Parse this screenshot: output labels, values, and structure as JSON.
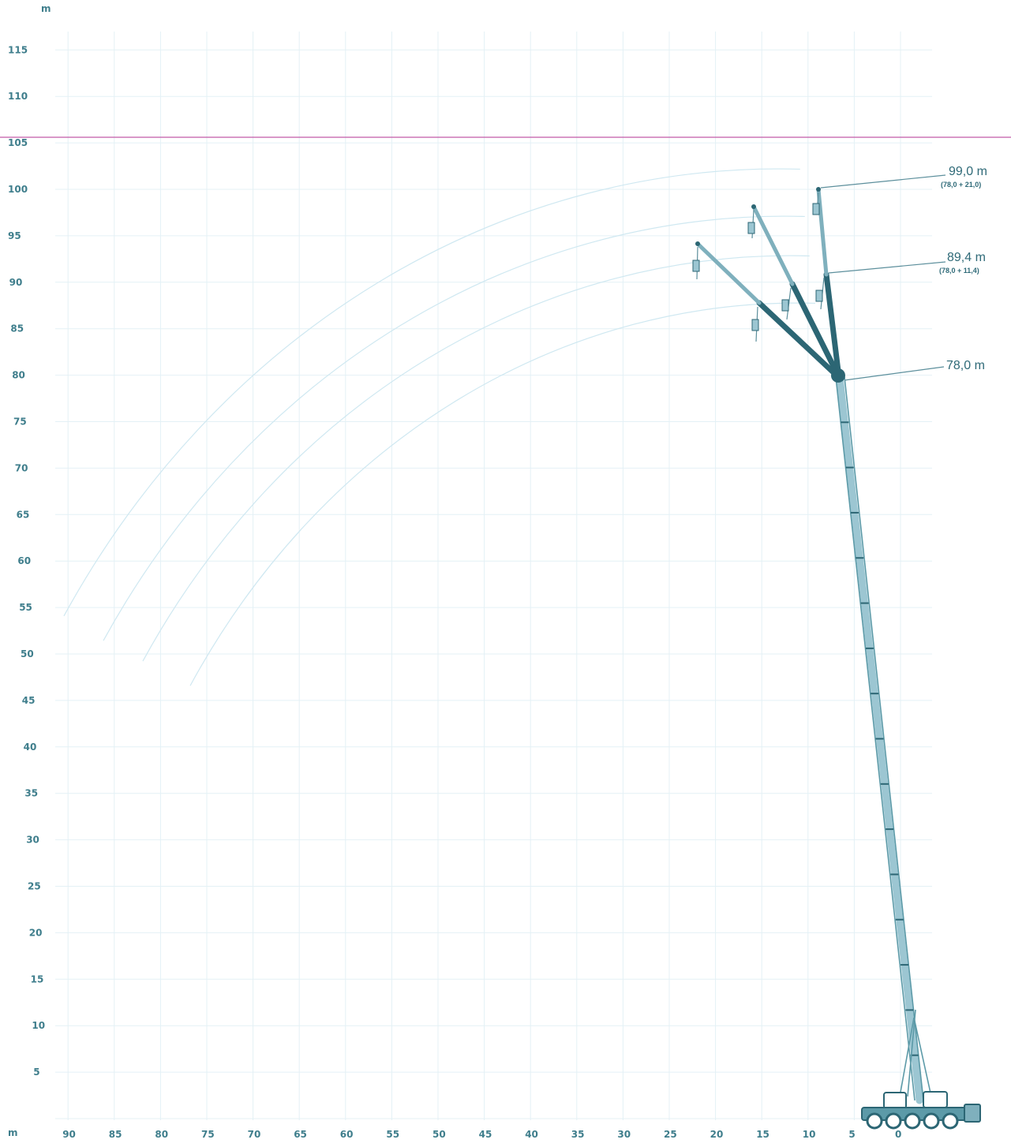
{
  "diagram": {
    "colors": {
      "axis_text": "#3f7e8c",
      "boom": "#2c6674",
      "boom_light": "#9cc6d2",
      "grid": "#e4f1f6",
      "range_curve": "#cfe8f1",
      "limit_line": "#c25aa6"
    },
    "y_axis": {
      "unit_label": "m",
      "ticks": [
        "115",
        "110",
        "105",
        "100",
        "95",
        "90",
        "85",
        "80",
        "75",
        "70",
        "65",
        "60",
        "55",
        "50",
        "45",
        "40",
        "35",
        "30",
        "25",
        "20",
        "15",
        "10",
        "5"
      ]
    },
    "x_axis": {
      "unit_label": "m",
      "ticks": [
        "90",
        "85",
        "80",
        "75",
        "70",
        "65",
        "60",
        "55",
        "50",
        "45",
        "40",
        "35",
        "30",
        "25",
        "20",
        "15",
        "10",
        "5",
        "0"
      ]
    },
    "limit_height_m": 105.6,
    "annotations": [
      {
        "main": "99,0 m",
        "sub": "(78,0 + 21,0)"
      },
      {
        "main": "89,4 m",
        "sub": "(78,0 + 11,4)"
      },
      {
        "main": "78,0 m",
        "sub": ""
      }
    ]
  }
}
